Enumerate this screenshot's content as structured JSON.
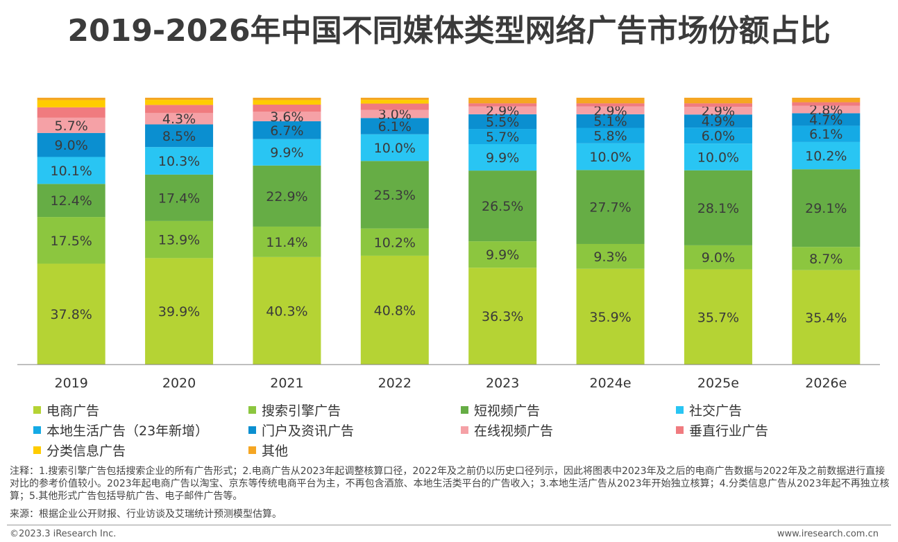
{
  "title": "2019-2026年中国不同媒体类型网络广告市场份额占比",
  "chart_data": {
    "type": "bar",
    "stacked": true,
    "categories": [
      "2019",
      "2020",
      "2021",
      "2022",
      "2023",
      "2024e",
      "2025e",
      "2026e"
    ],
    "ylim": [
      0,
      100
    ],
    "grid": false,
    "legend_position": "bottom",
    "series": [
      {
        "name": "电商广告",
        "color": "#b5d334",
        "values": [
          37.8,
          39.9,
          40.3,
          40.8,
          36.3,
          35.9,
          35.7,
          35.4
        ],
        "labels": [
          "37.8%",
          "39.9%",
          "40.3%",
          "40.8%",
          "36.3%",
          "35.9%",
          "35.7%",
          "35.4%"
        ]
      },
      {
        "name": "搜索引擎广告",
        "color": "#8cc63f",
        "values": [
          17.5,
          13.9,
          11.4,
          10.2,
          9.9,
          9.3,
          9.0,
          8.7
        ],
        "labels": [
          "17.5%",
          "13.9%",
          "11.4%",
          "10.2%",
          "9.9%",
          "9.3%",
          "9.0%",
          "8.7%"
        ]
      },
      {
        "name": "短视频广告",
        "color": "#66ad45",
        "values": [
          12.4,
          17.4,
          22.9,
          25.3,
          26.5,
          27.7,
          28.1,
          29.1
        ],
        "labels": [
          "12.4%",
          "17.4%",
          "22.9%",
          "25.3%",
          "26.5%",
          "27.7%",
          "28.1%",
          "29.1%"
        ]
      },
      {
        "name": "社交广告",
        "color": "#29c5f3",
        "values": [
          10.1,
          10.3,
          9.9,
          10.0,
          9.9,
          10.0,
          10.0,
          10.2
        ],
        "labels": [
          "10.1%",
          "10.3%",
          "9.9%",
          "10.0%",
          "9.9%",
          "10.0%",
          "10.0%",
          "10.2%"
        ]
      },
      {
        "name": "本地生活广告（23年新增）",
        "color": "#15aae5",
        "values": [
          0,
          0,
          0,
          0,
          5.7,
          5.8,
          6.0,
          6.1
        ],
        "labels": [
          "",
          "",
          "",
          "",
          "5.7%",
          "5.8%",
          "6.0%",
          "6.1%"
        ]
      },
      {
        "name": "门户及资讯广告",
        "color": "#0b8fd0",
        "values": [
          9.0,
          8.5,
          6.7,
          6.1,
          5.5,
          5.1,
          4.9,
          4.7
        ],
        "labels": [
          "9.0%",
          "8.5%",
          "6.7%",
          "6.1%",
          "5.5%",
          "5.1%",
          "4.9%",
          "4.7%"
        ]
      },
      {
        "name": "在线视频广告",
        "color": "#f5a1a6",
        "values": [
          5.7,
          4.3,
          3.6,
          3.0,
          2.9,
          2.9,
          2.9,
          2.8
        ],
        "labels": [
          "5.7%",
          "4.3%",
          "3.6%",
          "3.0%",
          "2.9%",
          "2.9%",
          "2.9%",
          "2.8%"
        ]
      },
      {
        "name": "垂直行业广告",
        "color": "#f07b7f",
        "values": [
          3.9,
          3.0,
          2.6,
          2.4,
          1.2,
          1.2,
          1.3,
          1.3
        ],
        "labels": [
          "",
          "",
          "",
          "",
          "",
          "",
          "",
          ""
        ]
      },
      {
        "name": "分类信息广告",
        "color": "#ffcc00",
        "values": [
          2.7,
          1.9,
          1.7,
          1.4,
          0,
          0,
          0,
          0
        ],
        "labels": [
          "",
          "",
          "",
          "",
          "",
          "",
          "",
          ""
        ]
      },
      {
        "name": "其他",
        "color": "#f5a623",
        "values": [
          0.9,
          0.8,
          0.9,
          0.8,
          2.1,
          2.1,
          2.1,
          1.7
        ],
        "labels": [
          "",
          "",
          "",
          "",
          "",
          "",
          "",
          ""
        ]
      }
    ]
  },
  "footnote": "注释：1.搜索引擎广告包括搜索企业的所有广告形式；2.电商广告从2023年起调整核算口径，2022年及之前仍以历史口径列示，因此将图表中2023年及之后的电商广告数据与2022年及之前数据进行直接对比的参考价值较小。2023年起电商广告以淘宝、京东等传统电商平台为主，不再包含酒旅、本地生活类平台的广告收入；3.本地生活广告从2023年开始独立核算；4.分类信息广告从2023年起不再独立核算；5.其他形式广告包括导航广告、电子邮件广告等。",
  "source": "来源：根据企业公开财报、行业访谈及艾瑞统计预测模型估算。",
  "copyright": "©2023.3 iResearch Inc.",
  "website": "www.iresearch.com.cn"
}
